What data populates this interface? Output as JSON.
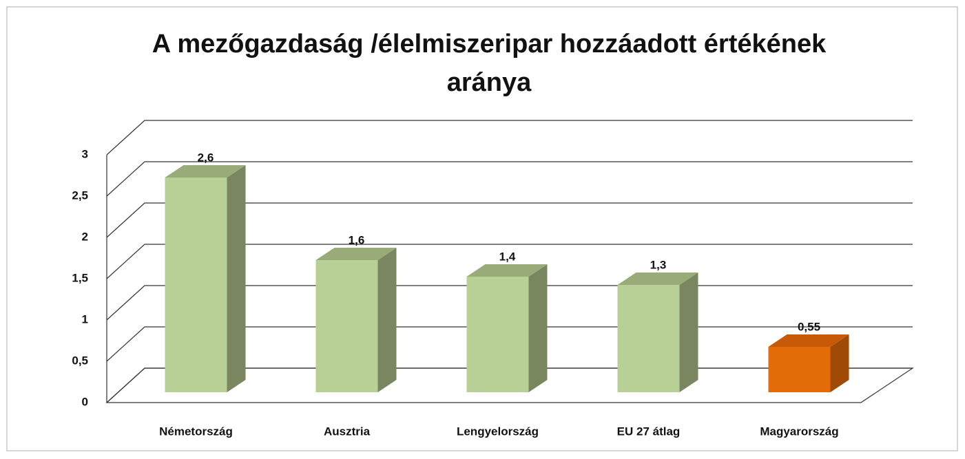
{
  "chart_data": {
    "type": "bar3d",
    "title": "A mezőgazdaság /élelmiszeripar hozzáadott értékének aránya",
    "categories": [
      "Németország",
      "Ausztria",
      "Lengyelország",
      "EU 27 átlag",
      "Magyarország"
    ],
    "values": [
      2.6,
      1.6,
      1.4,
      1.3,
      0.55
    ],
    "value_labels": [
      "2,6",
      "1,6",
      "1,4",
      "1,3",
      "0,55"
    ],
    "colors": [
      "#b8cf96",
      "#b8cf96",
      "#b8cf96",
      "#b8cf96",
      "#e36c09"
    ],
    "ylim": [
      0,
      3
    ],
    "yticks": [
      0,
      {
        "value": 0.5,
        "label": "0,5"
      },
      1,
      {
        "value": 1.5,
        "label": "1,5"
      },
      2,
      {
        "value": 2.5,
        "label": "2,5"
      },
      3
    ],
    "grid": true
  }
}
